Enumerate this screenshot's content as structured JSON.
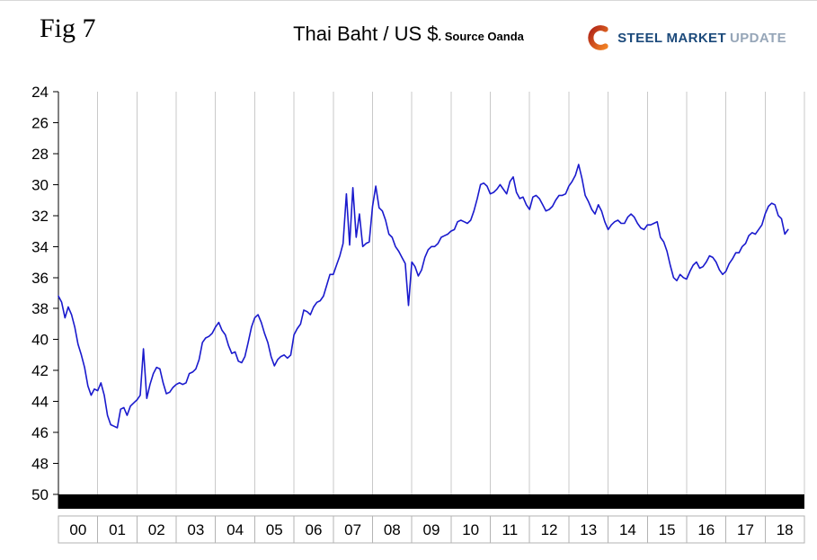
{
  "figure_label": "Fig 7",
  "title": {
    "main": "Thai Baht / US $",
    "source_suffix": ". Source Oanda"
  },
  "logo": {
    "steel": "STEEL",
    "market": "MARKET",
    "update": "UPDATE",
    "navy_color": "#1c4a7b",
    "light_color": "#96a6b8",
    "swoosh_color_start": "#b02418",
    "swoosh_color_end": "#f07f24"
  },
  "chart_data": {
    "type": "line",
    "title": "Thai Baht / US $",
    "source": "Oanda",
    "ylabel": "",
    "xlabel": "",
    "ylim": [
      24,
      50
    ],
    "y_increases_downward": true,
    "yticks": [
      24,
      26,
      28,
      30,
      32,
      34,
      36,
      38,
      40,
      42,
      44,
      46,
      48,
      50
    ],
    "xlim_years": [
      2000,
      2019
    ],
    "categories": [
      "00",
      "01",
      "02",
      "03",
      "04",
      "05",
      "06",
      "07",
      "08",
      "09",
      "10",
      "11",
      "12",
      "13",
      "14",
      "15",
      "16",
      "17",
      "18"
    ],
    "grid": "vertical-yearly",
    "grid_color": "#c9c9c9",
    "axis_color": "#000000",
    "cell_border_color": "#b3b3b3",
    "bottom_bar_color": "#000000",
    "resolution": "monthly (approximate, downsampled from daily)",
    "series": [
      {
        "name": "THB per USD",
        "color": "#1a1acd",
        "x_start_year": 2000,
        "x_step_months": 1,
        "values": [
          37.2,
          37.6,
          38.6,
          37.9,
          38.4,
          39.2,
          40.3,
          41.0,
          41.8,
          43.0,
          43.6,
          43.2,
          43.3,
          42.8,
          43.6,
          44.9,
          45.5,
          45.6,
          45.7,
          44.5,
          44.4,
          44.9,
          44.3,
          44.1,
          43.9,
          43.6,
          40.6,
          43.8,
          42.9,
          42.2,
          41.8,
          41.9,
          42.8,
          43.5,
          43.4,
          43.1,
          42.9,
          42.8,
          42.9,
          42.8,
          42.2,
          42.1,
          41.9,
          41.3,
          40.2,
          39.9,
          39.8,
          39.6,
          39.2,
          38.9,
          39.4,
          39.7,
          40.4,
          40.9,
          40.8,
          41.4,
          41.5,
          41.1,
          40.2,
          39.2,
          38.6,
          38.4,
          38.9,
          39.6,
          40.2,
          41.1,
          41.7,
          41.3,
          41.1,
          41.0,
          41.2,
          41.0,
          39.7,
          39.3,
          39.0,
          38.1,
          38.2,
          38.4,
          37.9,
          37.6,
          37.5,
          37.2,
          36.5,
          35.8,
          35.8,
          35.2,
          34.6,
          33.8,
          30.6,
          33.9,
          30.2,
          33.4,
          31.9,
          34.0,
          33.8,
          33.7,
          31.4,
          30.1,
          31.5,
          31.7,
          32.3,
          33.2,
          33.4,
          34.0,
          34.3,
          34.7,
          35.1,
          37.8,
          35.0,
          35.3,
          35.9,
          35.5,
          34.7,
          34.2,
          34.0,
          34.0,
          33.8,
          33.4,
          33.3,
          33.2,
          33.0,
          32.9,
          32.4,
          32.3,
          32.4,
          32.5,
          32.3,
          31.7,
          30.9,
          30.0,
          29.9,
          30.1,
          30.6,
          30.5,
          30.3,
          30.0,
          30.3,
          30.6,
          29.8,
          29.5,
          30.5,
          30.9,
          30.8,
          31.3,
          31.6,
          30.8,
          30.7,
          30.9,
          31.3,
          31.7,
          31.6,
          31.4,
          31.0,
          30.7,
          30.7,
          30.6,
          30.1,
          29.8,
          29.4,
          28.7,
          29.6,
          30.7,
          31.1,
          31.6,
          31.9,
          31.3,
          31.7,
          32.4,
          32.9,
          32.6,
          32.4,
          32.3,
          32.5,
          32.5,
          32.1,
          31.9,
          32.1,
          32.5,
          32.8,
          32.9,
          32.6,
          32.6,
          32.5,
          32.4,
          33.4,
          33.7,
          34.3,
          35.2,
          36.0,
          36.2,
          35.8,
          36.0,
          36.1,
          35.6,
          35.2,
          35.0,
          35.4,
          35.3,
          35.0,
          34.6,
          34.7,
          35.0,
          35.5,
          35.8,
          35.6,
          35.1,
          34.8,
          34.4,
          34.4,
          34.0,
          33.8,
          33.3,
          33.1,
          33.2,
          32.9,
          32.6,
          31.9,
          31.4,
          31.2,
          31.3,
          32.0,
          32.2,
          33.2,
          32.9
        ]
      }
    ]
  }
}
